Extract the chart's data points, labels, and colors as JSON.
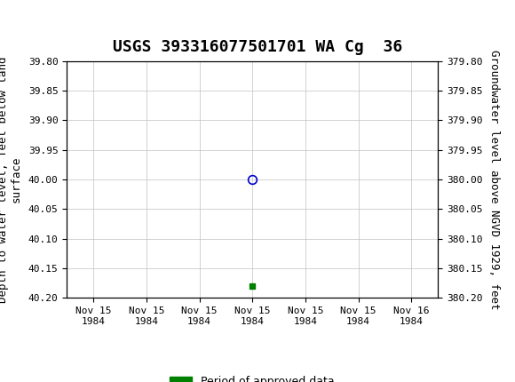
{
  "title": "USGS 393316077501701 WA Cg  36",
  "ylabel_left": "Depth to water level, feet below land\nsurface",
  "ylabel_right": "Groundwater level above NGVD 1929, feet",
  "ylim_left": [
    39.8,
    40.2
  ],
  "ylim_right": [
    379.8,
    380.2
  ],
  "yticks_left": [
    39.8,
    39.85,
    39.9,
    39.95,
    40.0,
    40.05,
    40.1,
    40.15,
    40.2
  ],
  "yticks_right": [
    379.8,
    379.85,
    379.9,
    379.95,
    380.0,
    380.05,
    380.1,
    380.15,
    380.2
  ],
  "data_point_depth": 40.0,
  "green_square_depth": 40.18,
  "marker_color": "#0000cc",
  "approved_color": "#008000",
  "header_bg_color": "#1a6b3c",
  "header_text_color": "#ffffff",
  "background_color": "#ffffff",
  "grid_color": "#c0c0c0",
  "font_family": "monospace",
  "title_fontsize": 13,
  "axis_label_fontsize": 9,
  "tick_fontsize": 8,
  "legend_fontsize": 9,
  "xtick_labels": [
    "Nov 15\n1984",
    "Nov 15\n1984",
    "Nov 15\n1984",
    "Nov 15\n1984",
    "Nov 15\n1984",
    "Nov 15\n1984",
    "Nov 16\n1984"
  ],
  "legend_label": "Period of approved data"
}
